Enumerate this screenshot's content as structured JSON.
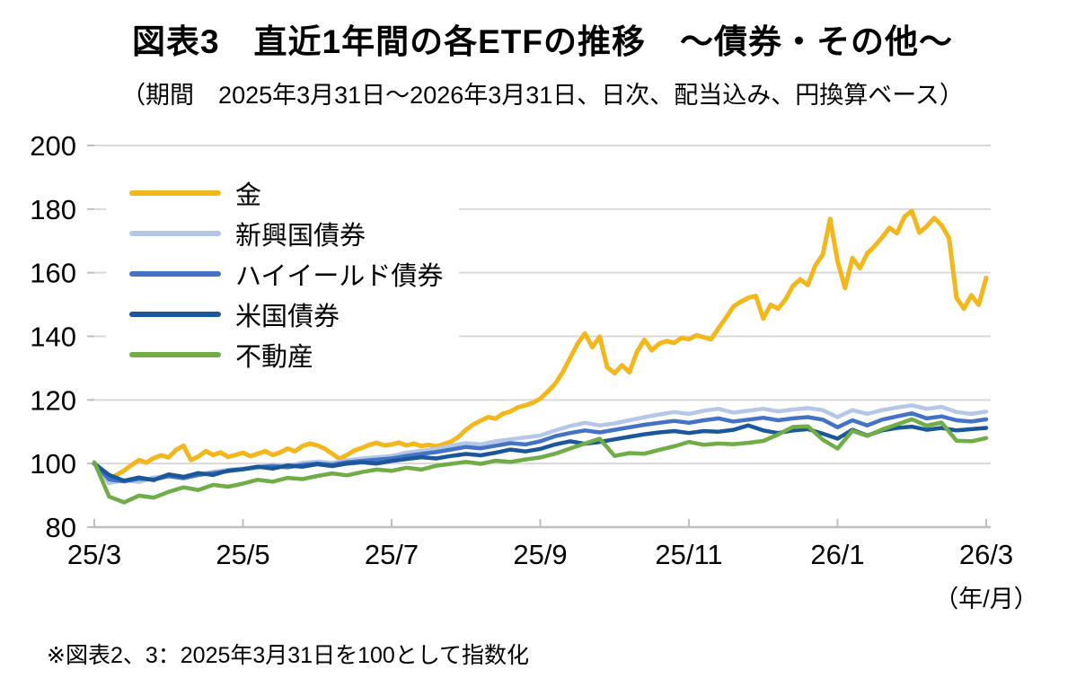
{
  "title": "図表3　直近1年間の各ETFの推移　～債券・その他～",
  "subtitle": "（期間　2025年3月31日～2026年3月31日、日次、配当込み、円換算ベース）",
  "footnote": "※図表2、3：2025年3月31日を100として指数化",
  "chart_data": {
    "type": "line",
    "title": "図表3　直近1年間の各ETFの推移　～債券・その他～",
    "x_axis": {
      "tick_labels": [
        "25/3",
        "25/5",
        "25/7",
        "25/9",
        "25/11",
        "26/1",
        "26/3"
      ],
      "unit_label": "（年/月）",
      "range_months": [
        0,
        12
      ]
    },
    "y_axis": {
      "ticks": [
        80,
        100,
        120,
        140,
        160,
        180,
        200
      ],
      "range": [
        80,
        200
      ]
    },
    "grid": true,
    "legend_position": "top-left-inside",
    "baseline_note": "2025/3/31 = 100",
    "series": [
      {
        "name": "金",
        "color": "#F3B61B",
        "stroke_width": 5,
        "values": [
          100,
          97.6,
          95.3,
          96.4,
          97.8,
          99.5,
          101.1,
          100.3,
          101.7,
          102.6,
          101.9,
          104.3,
          105.6,
          101.1,
          102.2,
          103.9,
          102.7,
          103.5,
          102.1,
          102.7,
          103.4,
          102.3,
          103.1,
          103.9,
          102.7,
          103.5,
          104.7,
          103.9,
          105.5,
          106.3,
          105.7,
          104.7,
          103.1,
          101.5,
          102.7,
          104.1,
          104.9,
          105.9,
          106.5,
          105.7,
          106.0,
          106.6,
          105.7,
          106.3,
          105.5,
          105.9,
          105.4,
          106.1,
          106.9,
          108.4,
          110.6,
          112.3,
          113.5,
          114.6,
          114.1,
          115.7,
          116.4,
          117.7,
          118.3,
          119.1,
          120.4,
          122.6,
          125.1,
          128.6,
          133.1,
          137.6,
          140.9,
          136.6,
          139.9,
          130.3,
          128.4,
          130.9,
          128.7,
          135.1,
          138.9,
          135.6,
          137.7,
          138.5,
          137.9,
          139.5,
          139.1,
          140.3,
          139.7,
          139.1,
          142.6,
          145.9,
          149.4,
          150.9,
          152.1,
          152.7,
          145.6,
          149.9,
          148.7,
          151.6,
          155.9,
          157.9,
          156.1,
          162.3,
          165.7,
          176.9,
          163.6,
          155.2,
          164.6,
          161.4,
          166.1,
          168.4,
          171.1,
          174.1,
          172.4,
          177.6,
          179.4,
          172.6,
          174.6,
          177.2,
          174.9,
          170.9,
          152.1,
          148.7,
          152.9,
          149.9,
          158.4
        ]
      },
      {
        "name": "新興国債券",
        "color": "#B4C7E7",
        "stroke_width": 4.5,
        "values": [
          100,
          93.8,
          94.8,
          94.2,
          95.6,
          96.2,
          95.4,
          96.6,
          97.4,
          98.0,
          98.4,
          99.0,
          99.6,
          99.2,
          100.2,
          100.6,
          100.2,
          101.0,
          101.6,
          102.0,
          102.4,
          103.4,
          104.0,
          104.6,
          105.6,
          106.4,
          106.0,
          107.0,
          107.6,
          108.2,
          108.8,
          110.4,
          111.8,
          112.8,
          112.0,
          112.6,
          113.6,
          114.6,
          115.4,
          116.2,
          115.6,
          116.6,
          117.2,
          116.0,
          116.6,
          117.2,
          116.4,
          117.0,
          117.4,
          116.8,
          114.6,
          116.8,
          115.6,
          116.8,
          117.6,
          118.3,
          117.2,
          117.8,
          116.2,
          115.6,
          116.3
        ]
      },
      {
        "name": "ハイイールド債券",
        "color": "#4472C4",
        "stroke_width": 4.5,
        "values": [
          100,
          95.0,
          94.4,
          95.2,
          95.0,
          96.0,
          95.4,
          96.4,
          97.0,
          97.6,
          98.2,
          98.8,
          99.2,
          98.8,
          99.6,
          100.0,
          99.6,
          100.4,
          100.8,
          101.2,
          101.6,
          102.4,
          103.0,
          103.6,
          104.4,
          105.2,
          104.8,
          105.6,
          106.4,
          106.0,
          107.0,
          108.6,
          109.6,
          110.4,
          109.8,
          110.6,
          111.4,
          112.2,
          112.8,
          113.4,
          112.8,
          113.6,
          114.2,
          113.2,
          113.8,
          114.4,
          113.6,
          114.2,
          114.6,
          113.8,
          111.4,
          113.6,
          112.0,
          113.8,
          114.8,
          115.8,
          114.2,
          114.8,
          113.6,
          113.2,
          113.9
        ]
      },
      {
        "name": "米国債券",
        "color": "#1A5899",
        "stroke_width": 4.5,
        "values": [
          100,
          96.4,
          94.6,
          95.6,
          94.8,
          96.6,
          95.8,
          97.0,
          96.4,
          97.8,
          98.2,
          99.0,
          98.4,
          99.4,
          99.0,
          99.8,
          99.2,
          100.0,
          100.4,
          100.0,
          100.8,
          101.4,
          102.0,
          101.6,
          102.4,
          103.0,
          102.6,
          103.4,
          104.4,
          103.8,
          104.6,
          106.0,
          107.0,
          106.2,
          106.8,
          107.6,
          108.4,
          109.2,
          109.8,
          110.2,
          109.6,
          110.2,
          110.0,
          110.6,
          112.0,
          110.4,
          109.6,
          110.4,
          110.8,
          109.4,
          107.8,
          110.6,
          108.8,
          110.4,
          111.2,
          111.6,
          110.6,
          111.2,
          110.4,
          110.8,
          111.2
        ]
      },
      {
        "name": "不動産",
        "color": "#70AD47",
        "stroke_width": 4.5,
        "values": [
          100.4,
          89.6,
          87.8,
          89.9,
          89.3,
          91.1,
          92.5,
          91.7,
          93.3,
          92.7,
          93.7,
          94.9,
          94.3,
          95.5,
          95.1,
          96.1,
          96.9,
          96.3,
          97.3,
          98.1,
          97.7,
          98.7,
          98.1,
          99.3,
          99.9,
          100.5,
          99.9,
          100.9,
          100.5,
          101.3,
          101.9,
          103.1,
          104.7,
          106.3,
          107.8,
          102.4,
          103.3,
          103.1,
          104.3,
          105.4,
          106.8,
          105.9,
          106.3,
          106.1,
          106.5,
          107.1,
          109.1,
          111.5,
          111.7,
          107.5,
          104.7,
          110.3,
          108.7,
          110.7,
          112.3,
          113.9,
          111.9,
          112.9,
          107.2,
          107.0,
          108.0
        ]
      }
    ]
  }
}
